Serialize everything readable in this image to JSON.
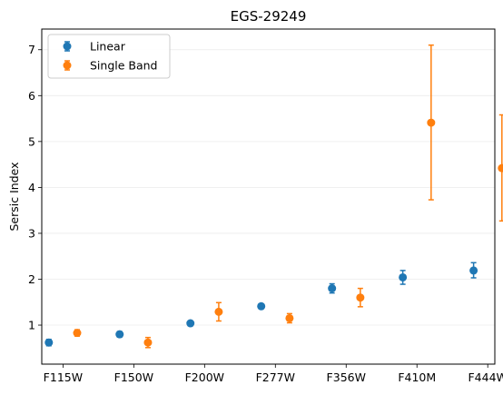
{
  "chart_data": {
    "type": "scatter",
    "title": "EGS-29249",
    "xlabel": "",
    "ylabel": "Sersic Index",
    "categories": [
      "F115W",
      "F150W",
      "F200W",
      "F277W",
      "F356W",
      "F410M",
      "F444W"
    ],
    "ylim": [
      0.15,
      7.45
    ],
    "yticks": [
      1,
      2,
      3,
      4,
      5,
      6,
      7
    ],
    "grid": "horizontal",
    "legend_position": "top-left",
    "series": [
      {
        "name": "Linear",
        "color": "#1f77b4",
        "offset": -0.2,
        "values": [
          0.62,
          0.8,
          1.04,
          1.41,
          1.8,
          2.04,
          2.19
        ],
        "err_low": [
          0.07,
          0.06,
          0.03,
          0.05,
          0.1,
          0.15,
          0.16
        ],
        "err_high": [
          0.07,
          0.06,
          0.03,
          0.05,
          0.1,
          0.15,
          0.17
        ]
      },
      {
        "name": "Single Band",
        "color": "#ff7f0e",
        "offset": 0.2,
        "values": [
          0.83,
          0.62,
          1.29,
          1.15,
          1.6,
          5.41,
          4.42
        ],
        "err_low": [
          0.07,
          0.11,
          0.2,
          0.1,
          0.2,
          1.68,
          1.15
        ],
        "err_high": [
          0.07,
          0.11,
          0.2,
          0.1,
          0.2,
          1.69,
          1.16
        ]
      }
    ]
  }
}
